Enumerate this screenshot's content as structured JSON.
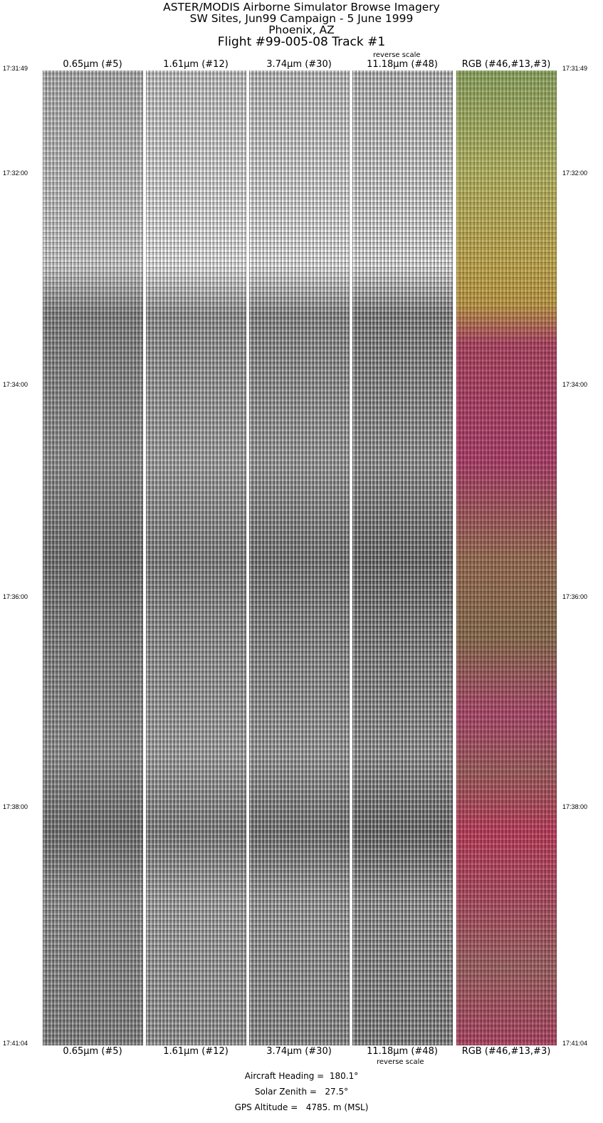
{
  "title": {
    "line1": "ASTER/MODIS Airborne Simulator Browse Imagery",
    "line2": "SW Sites, Jun99 Campaign - 5 June 1999",
    "line3": "Phoenix, AZ",
    "line4": "Flight #99-005-08 Track #1"
  },
  "bands": [
    {
      "label": "0.65µm (#5)"
    },
    {
      "label": "1.61µm (#12)"
    },
    {
      "label": "3.74µm (#30)"
    },
    {
      "label": "11.18µm (#48)",
      "note": "reverse scale"
    },
    {
      "label": "RGB (#46,#13,#3)"
    }
  ],
  "times": [
    "17:31:49",
    "17:32:00",
    "17:34:00",
    "17:36:00",
    "17:38:00",
    "17:41:04"
  ],
  "params": {
    "heading": "Aircraft Heading =  180.1°",
    "zenith": "Solar Zenith =   27.5°",
    "altitude": "GPS Altitude =   4785. m (MSL)"
  }
}
